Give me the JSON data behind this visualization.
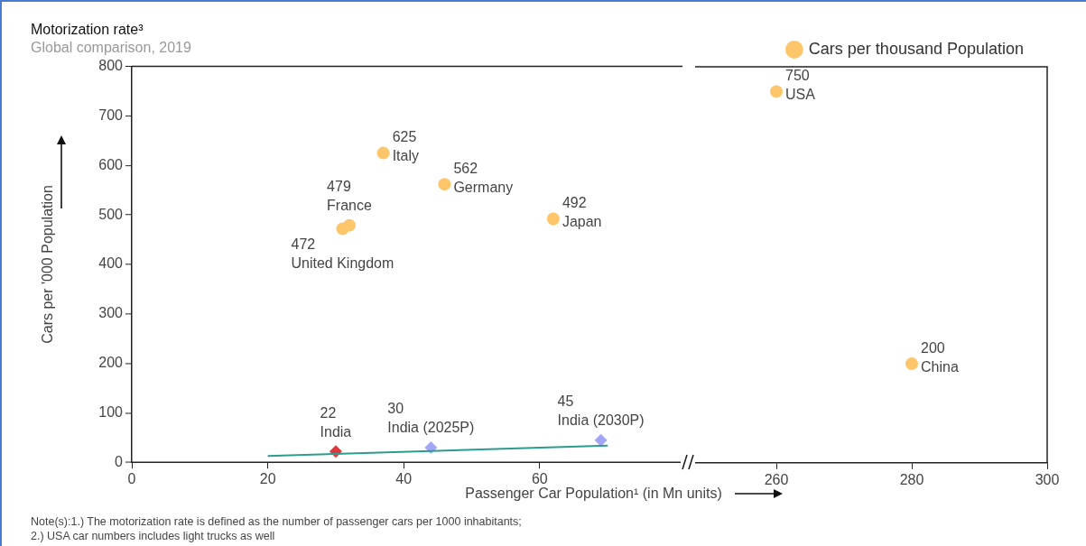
{
  "chart_data": [
    {
      "type": "scatter",
      "title": "Motorization rate³",
      "subtitle": "Global comparison, 2019",
      "xlabel": "Passenger Car Population¹ (in Mn units)",
      "ylabel": "Cars per '000 Population",
      "xlim": [
        0,
        81
      ],
      "xticks": [
        0,
        20,
        40,
        60
      ],
      "ylim": [
        0,
        800
      ],
      "yticks": [
        0,
        100,
        200,
        300,
        400,
        500,
        600,
        700,
        800
      ],
      "series": [
        {
          "type": "scatter",
          "marker": "circle",
          "color": "#fdc66b",
          "x": [
            31,
            32,
            37,
            46,
            62
          ],
          "values": [
            472,
            479,
            625,
            562,
            492
          ],
          "value_labels": [
            "472",
            "479",
            "625",
            "562",
            "492"
          ]
        },
        {
          "type": "line",
          "marker": "none",
          "color": "#2a9d8f",
          "x": [
            20,
            70
          ],
          "values": [
            13,
            34
          ]
        },
        {
          "type": "scatter",
          "marker": "diamond",
          "colors": [
            "#e0383c",
            "#a3a6f5",
            "#a3a6f5"
          ],
          "x": [
            30,
            44,
            69
          ],
          "values": [
            22,
            30,
            45
          ],
          "value_labels": [
            "22",
            "30",
            "45"
          ]
        }
      ],
      "annotations": [
        {
          "text": "United Kingdom",
          "x": 31,
          "y": 472
        },
        {
          "text": "France",
          "x": 32,
          "y": 479
        },
        {
          "text": "Italy",
          "x": 37,
          "y": 625
        },
        {
          "text": "Germany",
          "x": 46,
          "y": 562
        },
        {
          "text": "Japan",
          "x": 62,
          "y": 492
        },
        {
          "text": "India",
          "x": 30,
          "y": 22
        },
        {
          "text": "India (2025P)",
          "x": 44,
          "y": 30
        },
        {
          "text": "India (2030P)",
          "x": 69,
          "y": 45
        },
        "Note(s):1.) The motorization rate is defined as the number of passenger cars per 1000 inhabitants;",
        "2.) USA car numbers includes light trucks as well"
      ]
    },
    {
      "type": "scatter",
      "xlim": [
        248,
        300
      ],
      "xticks": [
        260,
        280,
        300
      ],
      "ylim": [
        0,
        800
      ],
      "yticks": [
        0,
        100,
        200,
        300,
        400,
        500,
        600,
        700,
        800
      ],
      "tick_labels": "x",
      "legend": "top right",
      "series": [
        {
          "type": "scatter",
          "name": "Cars per thousand Population",
          "marker": "circle",
          "color": "#fdc66b",
          "x": [
            260,
            280
          ],
          "values": [
            750,
            200
          ],
          "value_labels": [
            "750",
            "200"
          ]
        }
      ],
      "annotations": [
        {
          "text": "USA",
          "x": 260,
          "y": 750
        },
        {
          "text": "China",
          "x": 280,
          "y": 200
        }
      ]
    }
  ]
}
